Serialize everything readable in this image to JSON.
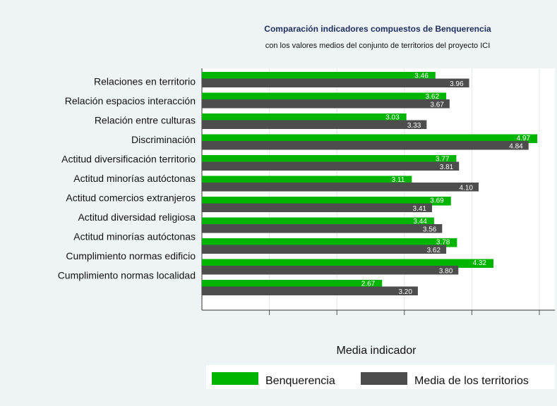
{
  "chart_data": {
    "type": "bar",
    "orientation": "horizontal",
    "title": "Comparación indicadores compuestos  de Benquerencia",
    "subtitle": "con los valores medios del conjunto de territorios del proyecto ICI",
    "xlabel": "Media indicador",
    "categories": [
      "Relaciones en territorio",
      "Relación espacios interacción",
      "Relación entre culturas",
      "Discriminación",
      "Actitud diversificación territorio",
      "Actitud minorías autóctonas",
      "Actitud comercios extranjeros",
      "Actitud diversidad religiosa",
      "Actitud minorías autóctonas",
      "Cumplimiento normas edificio",
      "Cumplimiento normas localidad"
    ],
    "series": [
      {
        "name": "Benquerencia",
        "color": "#00b400",
        "values": [
          3.46,
          3.62,
          3.03,
          4.97,
          3.77,
          3.11,
          3.69,
          3.44,
          3.78,
          4.32,
          2.67
        ],
        "value_labels": [
          "3.46",
          "3.62",
          "3.03",
          "4.97",
          "3.77",
          "3.11",
          "3.69",
          "3.44",
          "3.78",
          "4.32",
          "2.67"
        ]
      },
      {
        "name": "Media de los territorios",
        "color": "#4d4d4d",
        "values": [
          3.96,
          3.67,
          3.33,
          4.84,
          3.81,
          4.1,
          3.41,
          3.56,
          3.62,
          3.8,
          3.2
        ],
        "value_labels": [
          "3.96",
          "3.67",
          "3.33",
          "4.84",
          "3.81",
          "4.10",
          "3.41",
          "3.56",
          "3.62",
          "3.80",
          "3.20"
        ]
      }
    ],
    "xlim": [
      0,
      5
    ],
    "xticks": [
      1,
      2,
      3,
      4,
      5
    ],
    "grid": true
  }
}
